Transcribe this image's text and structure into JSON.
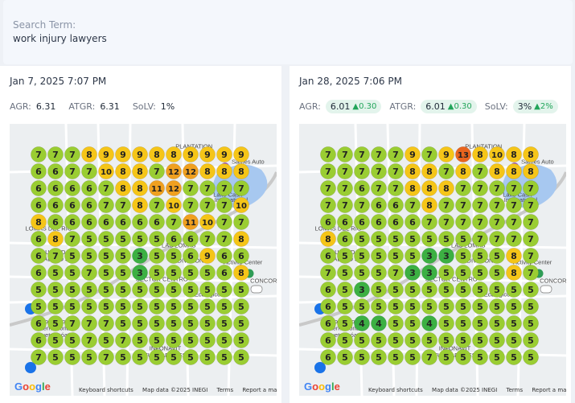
{
  "search": {
    "label": "Search Term:",
    "term": "work injury lawyers"
  },
  "map_labels": {
    "attribution": [
      "Keyboard shortcuts",
      "Map data ©2025 INEGI",
      "Terms",
      "Report a map error"
    ],
    "places": [
      {
        "text": "PLANTATION",
        "col": 9.2,
        "row": -0.35
      },
      {
        "text": "Sames Auto",
        "col": 12.4,
        "row": 0.55
      },
      {
        "text": "Lake Cash",
        "col": 11.2,
        "row": 2.5
      },
      {
        "text": "International",
        "col": 11.4,
        "row": 2.8
      },
      {
        "text": "LOMAS DEL RIO",
        "col": 0.6,
        "row": 4.5
      },
      {
        "text": "VOLUNTAD Y",
        "col": 0.8,
        "row": 5.9
      },
      {
        "text": "TRABAJO 3",
        "col": 0.8,
        "row": 6.3
      },
      {
        "text": "LAS LOMAS",
        "col": 8.3,
        "row": 5.5
      },
      {
        "text": "DIVISION",
        "col": 9.0,
        "row": 6.4
      },
      {
        "text": "Activity Center",
        "col": 12.1,
        "row": 6.5
      },
      {
        "text": "SECTOR CENTRO",
        "col": 7.3,
        "row": 7.5
      },
      {
        "text": "CONCORD HILLS",
        "col": 14.0,
        "row": 7.6
      },
      {
        "text": "Ecologico",
        "col": 10.0,
        "row": 8.4
      },
      {
        "text": "Aeropuerto",
        "col": 0.7,
        "row": 10.0
      },
      {
        "text": "Internacional",
        "col": 0.9,
        "row": 10.4
      },
      {
        "text": "Quetzalcóatl",
        "col": 0.9,
        "row": 10.8
      },
      {
        "text": "INFONAVIT",
        "col": 7.5,
        "row": 11.6
      },
      {
        "text": "FUNDADORES",
        "col": 7.5,
        "row": 12.0
      }
    ]
  },
  "reports": [
    {
      "date": "Jan 7, 2025 7:07 PM",
      "metrics": {
        "agr_label": "AGR:",
        "agr": "6.31",
        "atgr_label": "ATGR:",
        "atgr": "6.31",
        "solv_label": "SoLV:",
        "solv": "1%"
      },
      "grid": [
        [
          7,
          7,
          7,
          8,
          9,
          9,
          9,
          8,
          8,
          9,
          9,
          9,
          9
        ],
        [
          6,
          6,
          7,
          7,
          10,
          8,
          8,
          7,
          12,
          12,
          8,
          8,
          8
        ],
        [
          6,
          6,
          6,
          6,
          7,
          8,
          8,
          11,
          12,
          7,
          7,
          7,
          7
        ],
        [
          6,
          6,
          6,
          6,
          7,
          7,
          8,
          7,
          10,
          7,
          7,
          7,
          10
        ],
        [
          8,
          6,
          6,
          6,
          6,
          6,
          6,
          6,
          7,
          11,
          10,
          7,
          7
        ],
        [
          6,
          8,
          7,
          5,
          5,
          5,
          5,
          5,
          6,
          6,
          7,
          7,
          8
        ],
        [
          6,
          7,
          5,
          5,
          5,
          5,
          3,
          5,
          5,
          6,
          9,
          6,
          6
        ],
        [
          6,
          5,
          5,
          7,
          5,
          5,
          3,
          5,
          5,
          5,
          5,
          6,
          8
        ],
        [
          5,
          5,
          5,
          5,
          5,
          5,
          5,
          5,
          5,
          5,
          5,
          5,
          5
        ],
        [
          5,
          5,
          5,
          5,
          5,
          5,
          5,
          5,
          5,
          5,
          5,
          5,
          5
        ],
        [
          6,
          5,
          7,
          7,
          7,
          5,
          5,
          5,
          5,
          5,
          5,
          5,
          5
        ],
        [
          6,
          5,
          5,
          7,
          5,
          7,
          5,
          5,
          5,
          5,
          5,
          5,
          5
        ],
        [
          7,
          5,
          5,
          5,
          7,
          5,
          5,
          5,
          5,
          5,
          5,
          5,
          5
        ]
      ]
    },
    {
      "date": "Jan 28, 2025 7:06 PM",
      "metrics": {
        "agr_label": "AGR:",
        "agr": "6.01",
        "agr_delta": "0.30",
        "atgr_label": "ATGR:",
        "atgr": "6.01",
        "atgr_delta": "0.30",
        "solv_label": "SoLV:",
        "solv": "3%",
        "solv_delta": "2%"
      },
      "grid": [
        [
          7,
          7,
          7,
          7,
          7,
          9,
          7,
          9,
          13,
          8,
          10,
          8,
          8
        ],
        [
          7,
          7,
          7,
          7,
          7,
          8,
          8,
          7,
          8,
          7,
          8,
          8,
          8
        ],
        [
          7,
          7,
          6,
          7,
          7,
          8,
          8,
          8,
          7,
          7,
          7,
          7,
          7
        ],
        [
          7,
          7,
          7,
          6,
          6,
          7,
          8,
          7,
          7,
          7,
          7,
          7,
          7
        ],
        [
          6,
          6,
          6,
          6,
          6,
          6,
          7,
          7,
          7,
          7,
          7,
          7,
          7
        ],
        [
          8,
          6,
          5,
          5,
          5,
          5,
          5,
          5,
          5,
          7,
          7,
          7,
          7
        ],
        [
          6,
          5,
          5,
          5,
          5,
          5,
          3,
          3,
          5,
          5,
          5,
          8,
          7
        ],
        [
          7,
          5,
          5,
          5,
          7,
          3,
          3,
          5,
          5,
          5,
          5,
          8,
          7
        ],
        [
          6,
          5,
          3,
          5,
          5,
          5,
          5,
          5,
          5,
          5,
          5,
          5,
          5
        ],
        [
          6,
          5,
          5,
          5,
          5,
          5,
          5,
          5,
          5,
          5,
          5,
          5,
          5
        ],
        [
          6,
          5,
          4,
          4,
          5,
          5,
          4,
          5,
          5,
          5,
          5,
          5,
          5
        ],
        [
          6,
          5,
          5,
          5,
          5,
          5,
          5,
          5,
          5,
          5,
          5,
          5,
          5
        ],
        [
          6,
          5,
          5,
          5,
          5,
          5,
          7,
          5,
          5,
          5,
          5,
          5,
          5
        ]
      ]
    }
  ],
  "colors": {
    "rank_le4": "#3cb043",
    "rank_5_7": "#9acd32",
    "rank_8_10": "#f5c518",
    "rank_11_12": "#f0a020",
    "rank_13_plus": "#e8641e",
    "delta_up": "#22a55a",
    "pill_bg": "#e3f4ec"
  },
  "icons": [
    "map-pin-icon",
    "airport-icon",
    "park-icon",
    "highway-shield-icon",
    "google-logo"
  ]
}
